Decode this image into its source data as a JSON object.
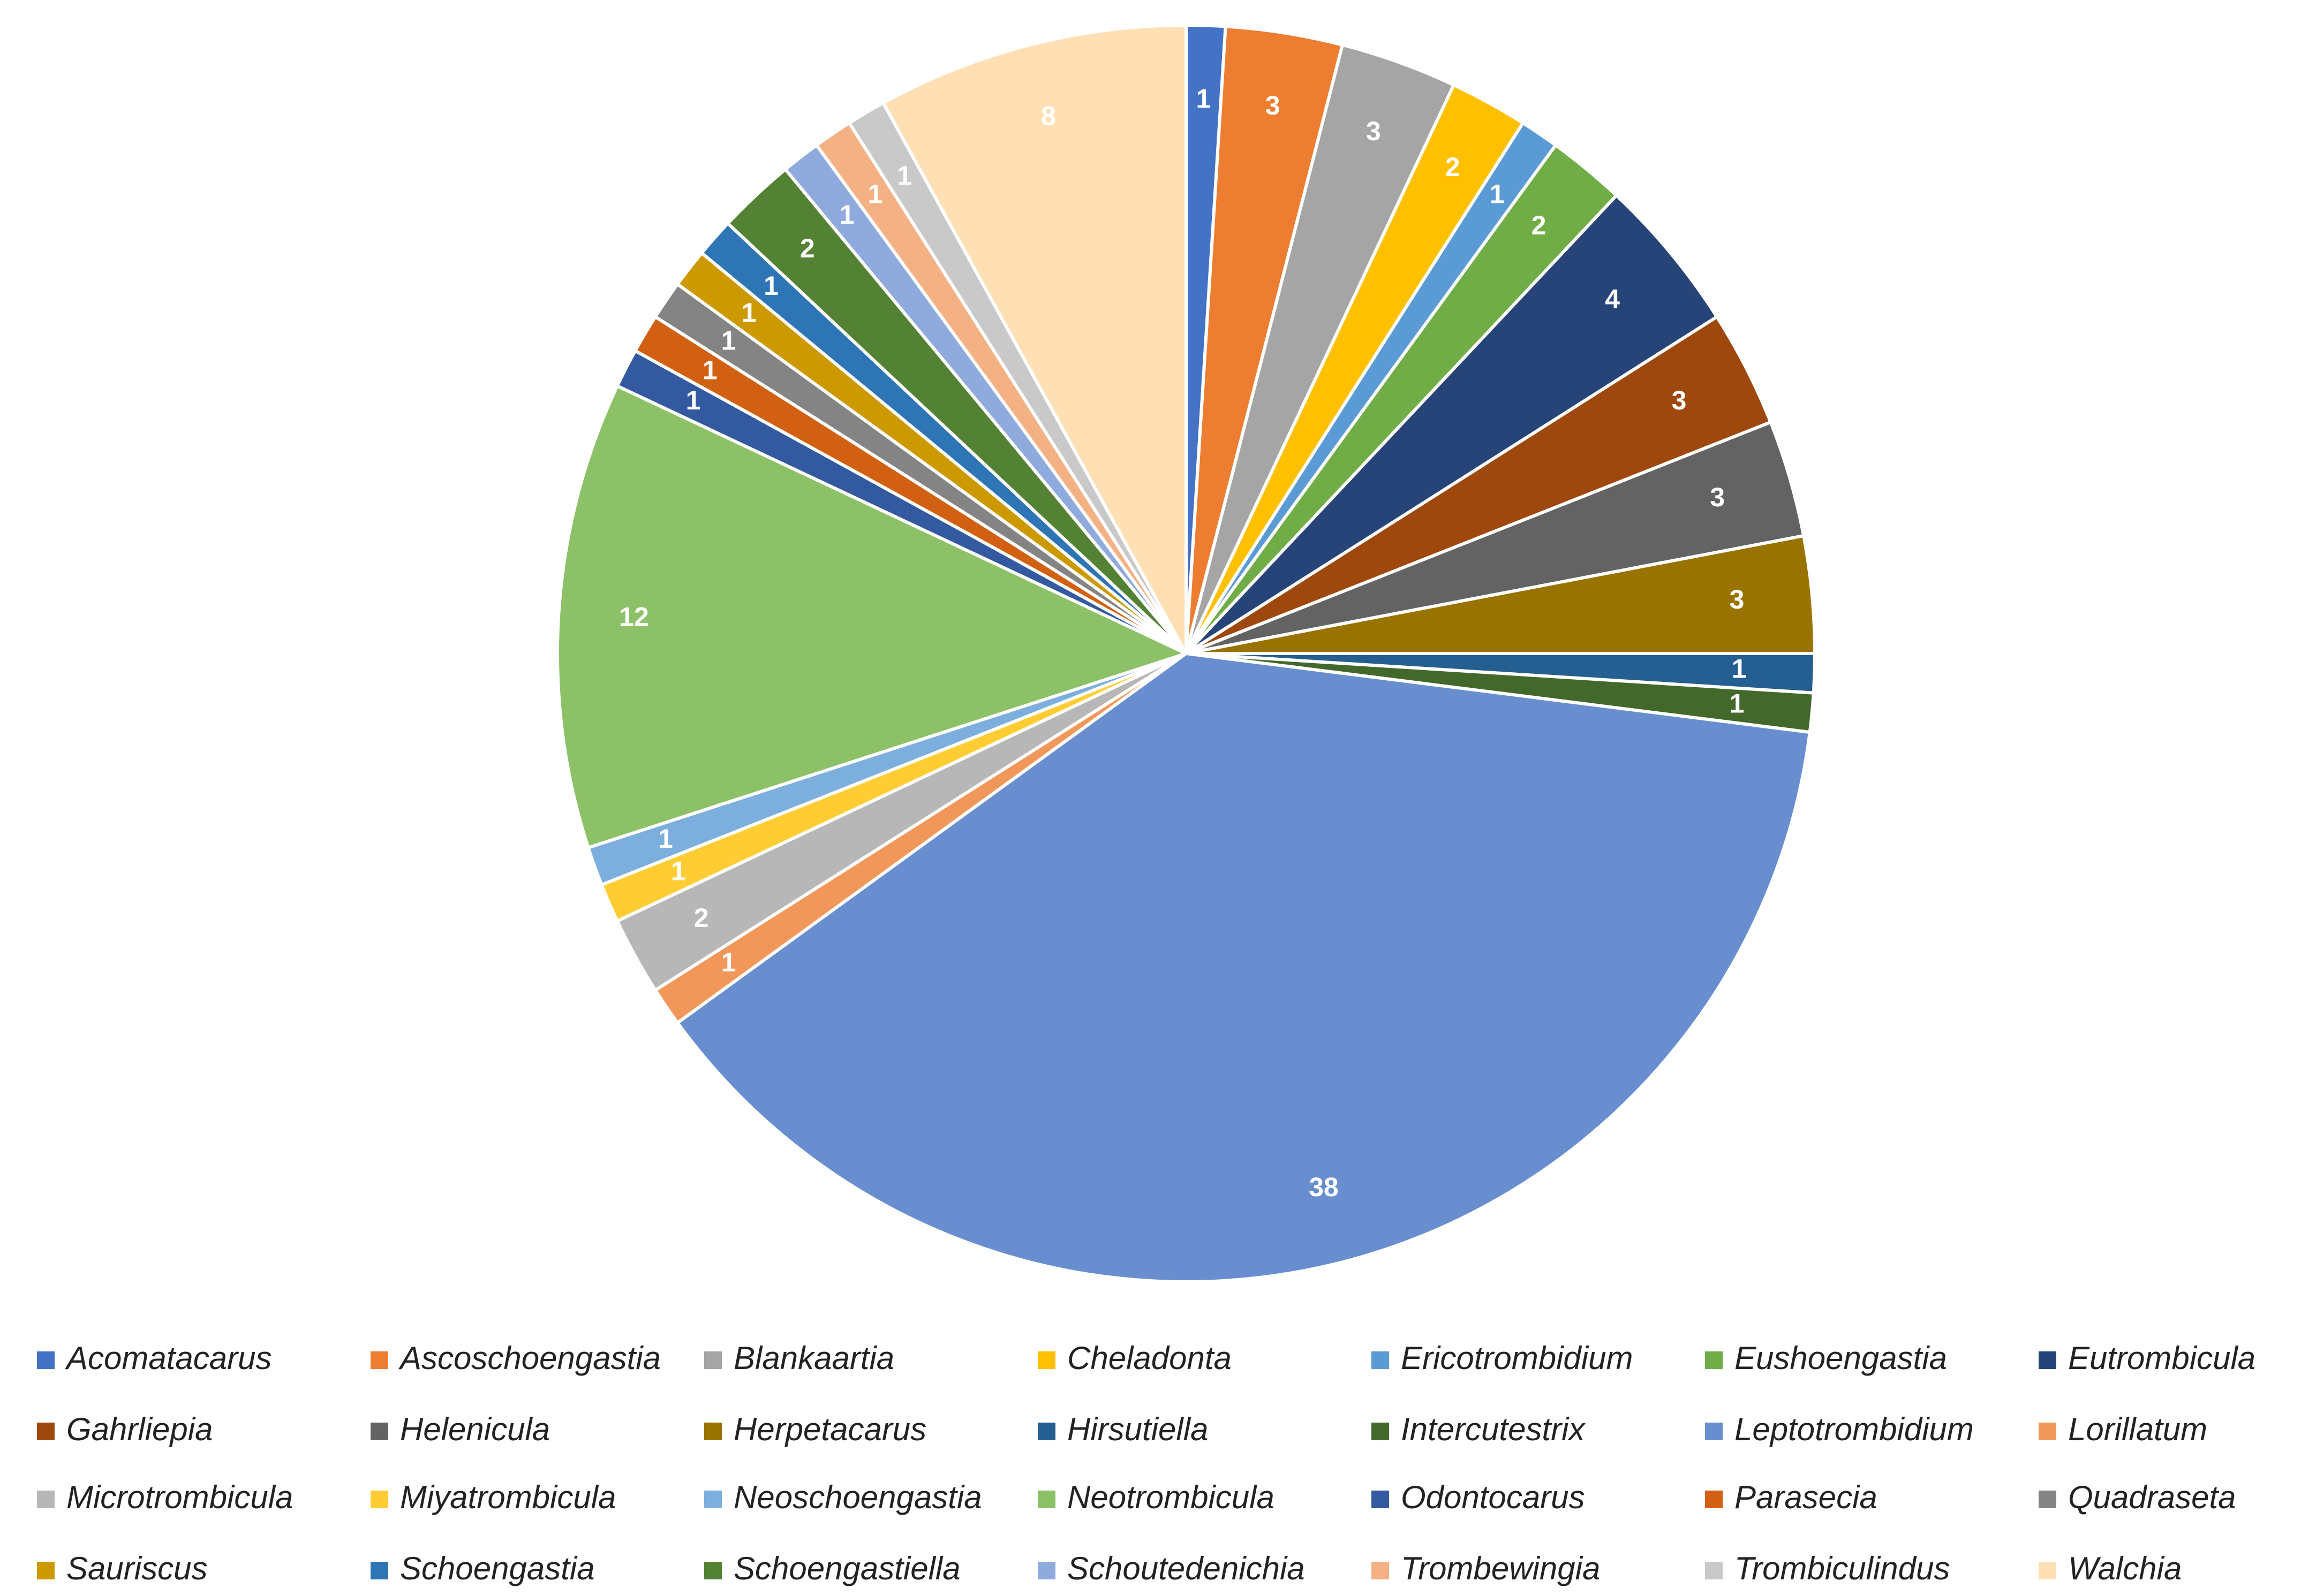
{
  "chart_data": {
    "type": "pie",
    "categories": [
      "Acomatacarus",
      "Ascoschoengastia",
      "Blankaartia",
      "Cheladonta",
      "Ericotrombidium",
      "Eushoengastia",
      "Eutrombicula",
      "Gahrliepia",
      "Helenicula",
      "Herpetacarus",
      "Hirsutiella",
      "Intercutestrix",
      "Leptotrombidium",
      "Lorillatum",
      "Microtrombicula",
      "Miyatrombicula",
      "Neoschoengastia",
      "Neotrombicula",
      "Odontocarus",
      "Parasecia",
      "Quadraseta",
      "Sauriscus",
      "Schoengastia",
      "Schoengastiella",
      "Schoutedenichia",
      "Trombewingia",
      "Trombiculindus",
      "Walchia"
    ],
    "values": [
      1,
      3,
      3,
      2,
      1,
      2,
      4,
      3,
      3,
      3,
      1,
      1,
      38,
      1,
      2,
      1,
      1,
      12,
      1,
      1,
      1,
      1,
      1,
      2,
      1,
      1,
      1,
      8
    ],
    "colors": [
      "#4472c4",
      "#ed7d31",
      "#a5a5a5",
      "#ffc000",
      "#5b9bd5",
      "#70ad47",
      "#264478",
      "#9e480e",
      "#636363",
      "#997300",
      "#255e91",
      "#43682b",
      "#698ed0",
      "#f1975a",
      "#b7b7b7",
      "#ffcd33",
      "#7cafdd",
      "#8cc168",
      "#335aa1",
      "#d26012",
      "#848484",
      "#cc9a00",
      "#2e75b6",
      "#548235",
      "#8faadc",
      "#f4b183",
      "#c9c9c9",
      "#fee0b4"
    ],
    "legend": "bottom"
  }
}
